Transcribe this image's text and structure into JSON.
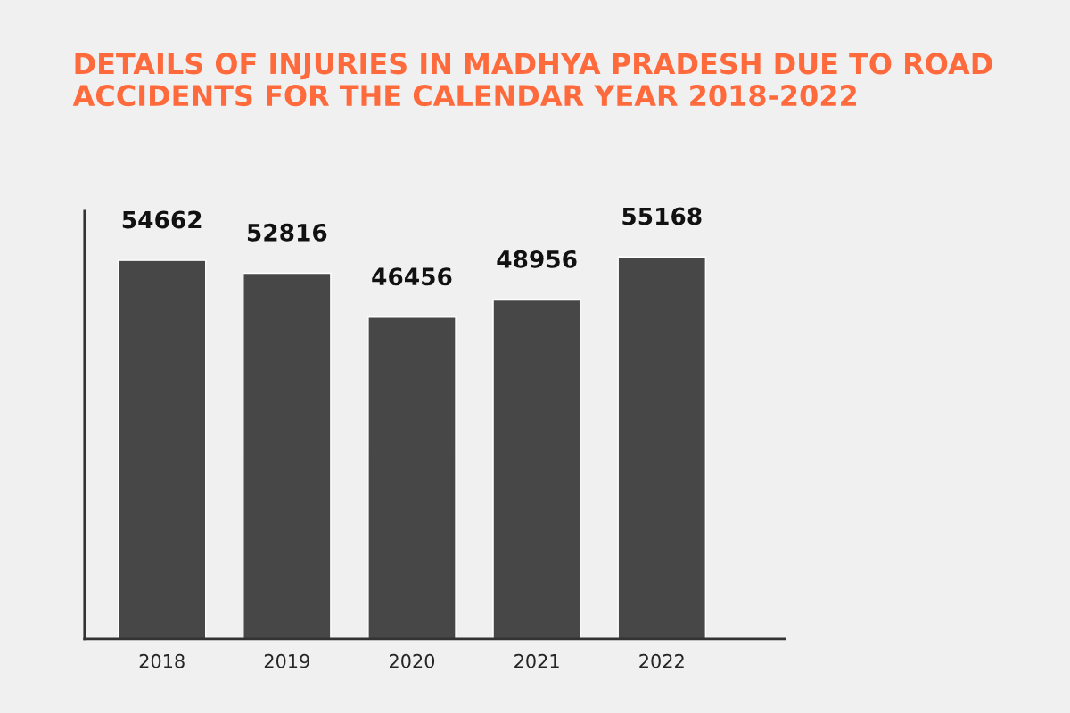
{
  "chart_data": {
    "type": "bar",
    "title": "DETAILS OF INJURIES IN MADHYA PRADESH DUE TO ROAD ACCIDENTS FOR THE CALENDAR YEAR 2018-2022",
    "categories": [
      "2018",
      "2019",
      "2020",
      "2021",
      "2022"
    ],
    "values": [
      54662,
      52816,
      46456,
      48956,
      55168
    ],
    "color": "#474747",
    "data_labels": true,
    "tick_labels": "x",
    "grid": false
  }
}
